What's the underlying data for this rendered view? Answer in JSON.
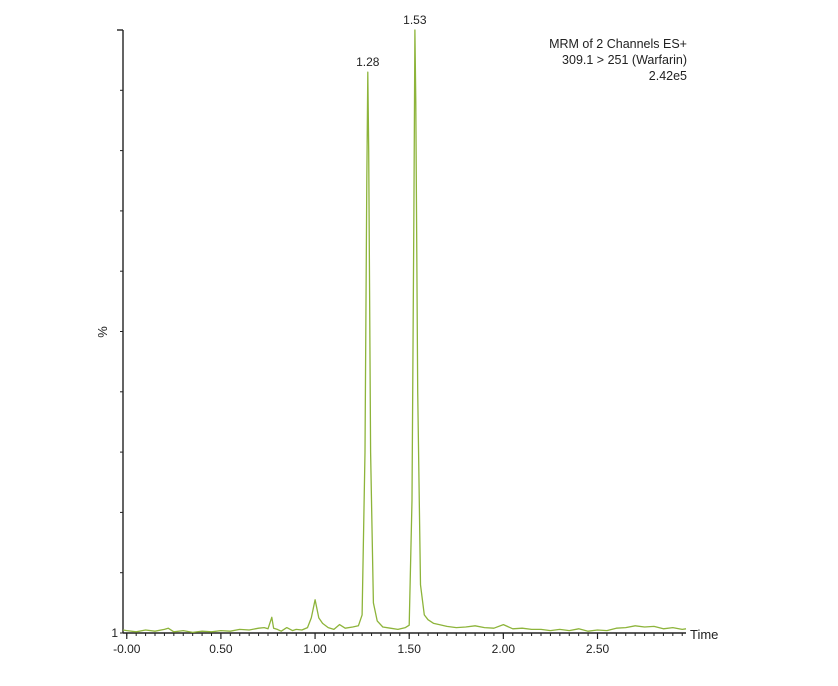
{
  "chart_data": {
    "type": "line",
    "info_lines": [
      "MRM of 2 Channels ES+",
      "309.1 > 251 (Warfarin)",
      "2.42e5"
    ],
    "ylabel": "%",
    "xlabel": "Time",
    "y_min_label": "1",
    "xlim": [
      -0.02,
      2.97
    ],
    "ylim": [
      0,
      100
    ],
    "x_ticks": [
      {
        "value": 0.0,
        "label": "-0.00"
      },
      {
        "value": 0.5,
        "label": "0.50"
      },
      {
        "value": 1.0,
        "label": "1.00"
      },
      {
        "value": 1.5,
        "label": "1.50"
      },
      {
        "value": 2.0,
        "label": "2.00"
      },
      {
        "value": 2.5,
        "label": "2.50"
      }
    ],
    "peak_labels": [
      {
        "x": 1.28,
        "y": 93,
        "label": "1.28"
      },
      {
        "x": 1.53,
        "y": 100,
        "label": "1.53"
      }
    ],
    "series": [
      {
        "color": "#8db43a",
        "points": [
          [
            -0.02,
            0.5
          ],
          [
            0.0,
            0.4
          ],
          [
            0.05,
            0.2
          ],
          [
            0.1,
            0.5
          ],
          [
            0.15,
            0.3
          ],
          [
            0.2,
            0.6
          ],
          [
            0.22,
            0.8
          ],
          [
            0.25,
            0.2
          ],
          [
            0.3,
            0.4
          ],
          [
            0.35,
            0.1
          ],
          [
            0.4,
            0.3
          ],
          [
            0.45,
            0.2
          ],
          [
            0.5,
            0.4
          ],
          [
            0.55,
            0.3
          ],
          [
            0.6,
            0.6
          ],
          [
            0.65,
            0.5
          ],
          [
            0.7,
            0.8
          ],
          [
            0.73,
            0.9
          ],
          [
            0.75,
            0.7
          ],
          [
            0.77,
            2.6
          ],
          [
            0.78,
            0.8
          ],
          [
            0.8,
            0.6
          ],
          [
            0.82,
            0.3
          ],
          [
            0.85,
            0.9
          ],
          [
            0.88,
            0.4
          ],
          [
            0.9,
            0.6
          ],
          [
            0.93,
            0.5
          ],
          [
            0.96,
            0.9
          ],
          [
            0.98,
            2.5
          ],
          [
            1.0,
            5.5
          ],
          [
            1.02,
            2.5
          ],
          [
            1.04,
            1.6
          ],
          [
            1.07,
            0.9
          ],
          [
            1.1,
            0.6
          ],
          [
            1.13,
            1.4
          ],
          [
            1.16,
            0.8
          ],
          [
            1.2,
            1.0
          ],
          [
            1.23,
            1.2
          ],
          [
            1.25,
            3.0
          ],
          [
            1.265,
            30
          ],
          [
            1.275,
            75
          ],
          [
            1.28,
            93
          ],
          [
            1.285,
            80
          ],
          [
            1.295,
            30
          ],
          [
            1.31,
            5
          ],
          [
            1.33,
            2
          ],
          [
            1.36,
            1.0
          ],
          [
            1.4,
            0.8
          ],
          [
            1.44,
            0.6
          ],
          [
            1.48,
            0.9
          ],
          [
            1.5,
            1.3
          ],
          [
            1.515,
            22
          ],
          [
            1.525,
            70
          ],
          [
            1.53,
            100
          ],
          [
            1.535,
            88
          ],
          [
            1.545,
            40
          ],
          [
            1.56,
            8
          ],
          [
            1.58,
            3
          ],
          [
            1.6,
            2.2
          ],
          [
            1.63,
            1.6
          ],
          [
            1.66,
            1.4
          ],
          [
            1.7,
            1.1
          ],
          [
            1.75,
            0.9
          ],
          [
            1.8,
            1.0
          ],
          [
            1.85,
            1.2
          ],
          [
            1.9,
            0.9
          ],
          [
            1.95,
            0.8
          ],
          [
            2.0,
            1.4
          ],
          [
            2.05,
            0.7
          ],
          [
            2.1,
            0.8
          ],
          [
            2.15,
            0.6
          ],
          [
            2.2,
            0.6
          ],
          [
            2.25,
            0.4
          ],
          [
            2.3,
            0.6
          ],
          [
            2.35,
            0.4
          ],
          [
            2.4,
            0.7
          ],
          [
            2.45,
            0.3
          ],
          [
            2.5,
            0.5
          ],
          [
            2.55,
            0.4
          ],
          [
            2.6,
            0.8
          ],
          [
            2.65,
            0.9
          ],
          [
            2.7,
            1.2
          ],
          [
            2.75,
            1.0
          ],
          [
            2.8,
            1.1
          ],
          [
            2.85,
            0.7
          ],
          [
            2.9,
            0.9
          ],
          [
            2.95,
            0.6
          ],
          [
            2.97,
            0.7
          ]
        ]
      }
    ]
  }
}
